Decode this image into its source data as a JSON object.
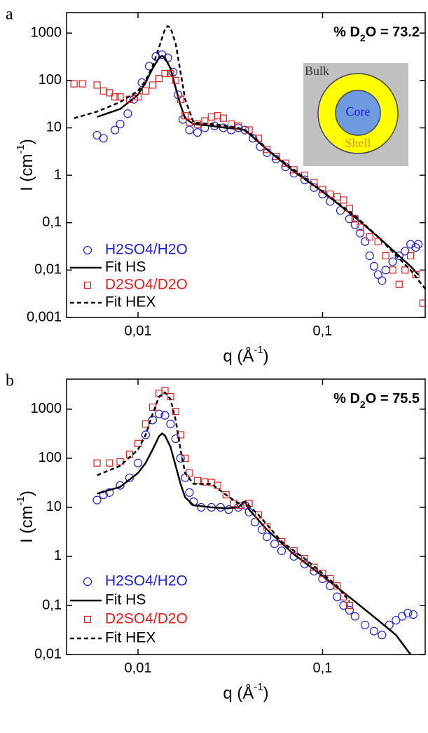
{
  "chart_data": [
    {
      "type": "scatter",
      "panel_label": "a",
      "annotation": [
        "% D",
        "2",
        "O = 73.2"
      ],
      "x_label": [
        "q (Å",
        "-1",
        ")"
      ],
      "y_label": [
        "I (cm",
        "-1",
        ")"
      ],
      "x_scale": "log",
      "y_scale": "log",
      "grid": false,
      "legend": "lower left",
      "xlim": [
        0.0041,
        0.36
      ],
      "ylim": [
        0.001,
        2700
      ],
      "xticks": [
        {
          "value": 0.01,
          "label": "0,01"
        },
        {
          "value": 0.1,
          "label": "0,1"
        }
      ],
      "yticks": [
        {
          "value": 0.001,
          "label": "0,001"
        },
        {
          "value": 0.01,
          "label": "0,01"
        },
        {
          "value": 0.1,
          "label": "0,1"
        },
        1,
        10,
        100,
        1000
      ],
      "inset": [
        "Bulk",
        "Core",
        "Shell"
      ],
      "series": [
        {
          "name": "H2SO4/H2O",
          "color": "#1f1fd0",
          "style": "circle",
          "x": [
            0.006,
            0.0065,
            0.0075,
            0.008,
            0.0088,
            0.0095,
            0.0105,
            0.0115,
            0.0125,
            0.0135,
            0.0145,
            0.0155,
            0.0165,
            0.0175,
            0.019,
            0.021,
            0.023,
            0.026,
            0.029,
            0.032,
            0.035,
            0.038,
            0.042,
            0.046,
            0.05,
            0.056,
            0.063,
            0.07,
            0.08,
            0.09,
            0.1,
            0.11,
            0.125,
            0.14,
            0.15,
            0.16,
            0.17,
            0.18,
            0.19,
            0.2,
            0.21,
            0.22,
            0.24,
            0.26,
            0.28,
            0.3,
            0.32,
            0.33
          ],
          "values": [
            7,
            6,
            9,
            12,
            20,
            40,
            90,
            200,
            320,
            350,
            300,
            150,
            50,
            15,
            9,
            8,
            10,
            11,
            10,
            9,
            10,
            9,
            6,
            4,
            3,
            2.2,
            1.5,
            1.1,
            0.8,
            0.55,
            0.4,
            0.28,
            0.18,
            0.12,
            0.09,
            0.06,
            0.04,
            0.02,
            0.012,
            0.008,
            0.006,
            0.01,
            0.015,
            0.02,
            0.025,
            0.035,
            0.03,
            0.035
          ]
        },
        {
          "name": "Fit HS",
          "color": "#000000",
          "style": "solid",
          "x": [
            0.006,
            0.008,
            0.01,
            0.011,
            0.012,
            0.013,
            0.0135,
            0.014,
            0.015,
            0.016,
            0.017,
            0.018,
            0.02,
            0.025,
            0.03,
            0.035,
            0.038,
            0.045,
            0.05,
            0.07,
            0.1,
            0.15,
            0.2,
            0.3,
            0.33
          ],
          "values": [
            17,
            25,
            50,
            90,
            180,
            300,
            330,
            300,
            180,
            70,
            30,
            16,
            12,
            11,
            10,
            9.5,
            9,
            5,
            3.5,
            1.2,
            0.45,
            0.13,
            0.05,
            0.012,
            0.008
          ]
        },
        {
          "name": "D2SO4/D2O",
          "color": "#e02020",
          "style": "square",
          "x": [
            0.0045,
            0.005,
            0.006,
            0.0065,
            0.007,
            0.0075,
            0.008,
            0.009,
            0.01,
            0.011,
            0.012,
            0.013,
            0.014,
            0.015,
            0.016,
            0.017,
            0.018,
            0.019,
            0.021,
            0.023,
            0.025,
            0.027,
            0.029,
            0.032,
            0.035,
            0.04,
            0.045,
            0.05,
            0.056,
            0.063,
            0.07,
            0.08,
            0.09,
            0.1,
            0.11,
            0.12,
            0.13,
            0.14,
            0.15,
            0.16,
            0.18,
            0.2,
            0.22,
            0.24,
            0.26,
            0.28,
            0.3,
            0.32,
            0.35
          ],
          "values": [
            85,
            85,
            80,
            60,
            55,
            45,
            45,
            40,
            45,
            60,
            80,
            110,
            140,
            140,
            100,
            40,
            18,
            13,
            12,
            14,
            17,
            18,
            16,
            12,
            11,
            9,
            6,
            3.5,
            2.5,
            1.8,
            1.3,
            1,
            0.7,
            0.5,
            0.4,
            0.35,
            0.3,
            0.2,
            0.12,
            0.08,
            0.05,
            0.04,
            0.02,
            0.01,
            0.005,
            0.01,
            0.02,
            0.008,
            0.002
          ]
        },
        {
          "name": "Fit HEX",
          "color": "#000000",
          "style": "dashed",
          "x": [
            0.0045,
            0.006,
            0.008,
            0.01,
            0.011,
            0.012,
            0.013,
            0.014,
            0.0145,
            0.015,
            0.016,
            0.017,
            0.018,
            0.02,
            0.025,
            0.03,
            0.035,
            0.04,
            0.05,
            0.07,
            0.1,
            0.15,
            0.2,
            0.3,
            0.36
          ],
          "values": [
            16,
            22,
            35,
            60,
            100,
            200,
            500,
            1200,
            1400,
            1300,
            600,
            150,
            40,
            13,
            12,
            11,
            10,
            8,
            3.5,
            1.3,
            0.45,
            0.14,
            0.05,
            0.01,
            0.004
          ]
        }
      ]
    },
    {
      "type": "scatter",
      "panel_label": "b",
      "annotation": [
        "% D",
        "2",
        "O = 75.5"
      ],
      "x_label": [
        "q (Å",
        "-1",
        ")"
      ],
      "y_label": [
        "I (cm",
        "-1",
        ")"
      ],
      "x_scale": "log",
      "y_scale": "log",
      "grid": false,
      "legend": "lower left",
      "xlim": [
        0.0041,
        0.36
      ],
      "ylim": [
        0.01,
        4100
      ],
      "xticks": [
        {
          "value": 0.01,
          "label": "0,01"
        },
        {
          "value": 0.1,
          "label": "0,1"
        }
      ],
      "yticks": [
        {
          "value": 0.01,
          "label": "0,01"
        },
        {
          "value": 0.1,
          "label": "0,1"
        },
        1,
        10,
        100,
        1000
      ],
      "series": [
        {
          "name": "H2SO4/H2O",
          "color": "#1f1fd0",
          "style": "circle",
          "x": [
            0.006,
            0.0065,
            0.007,
            0.008,
            0.009,
            0.01,
            0.011,
            0.012,
            0.013,
            0.014,
            0.015,
            0.016,
            0.017,
            0.018,
            0.019,
            0.02,
            0.022,
            0.025,
            0.028,
            0.031,
            0.035,
            0.038,
            0.04,
            0.043,
            0.047,
            0.05,
            0.055,
            0.06,
            0.07,
            0.08,
            0.09,
            0.1,
            0.11,
            0.12,
            0.13,
            0.14,
            0.15,
            0.17,
            0.19,
            0.21,
            0.23,
            0.25,
            0.27,
            0.29,
            0.31
          ],
          "values": [
            14,
            18,
            20,
            28,
            40,
            80,
            300,
            600,
            800,
            750,
            500,
            250,
            100,
            40,
            20,
            13,
            10,
            10,
            10,
            9,
            10,
            11,
            8,
            5,
            3.5,
            2.5,
            1.8,
            1.3,
            1,
            0.7,
            0.5,
            0.35,
            0.25,
            0.15,
            0.1,
            0.08,
            0.06,
            0.04,
            0.03,
            0.025,
            0.04,
            0.05,
            0.06,
            0.07,
            0.065
          ]
        },
        {
          "name": "Fit HS",
          "color": "#000000",
          "style": "solid",
          "x": [
            0.006,
            0.008,
            0.01,
            0.011,
            0.012,
            0.013,
            0.0135,
            0.014,
            0.015,
            0.016,
            0.017,
            0.018,
            0.02,
            0.025,
            0.03,
            0.035,
            0.038,
            0.04,
            0.05,
            0.07,
            0.1,
            0.15,
            0.2,
            0.25,
            0.3
          ],
          "values": [
            19,
            26,
            50,
            80,
            150,
            280,
            320,
            290,
            170,
            70,
            30,
            16,
            11,
            10,
            9.5,
            10,
            13,
            9,
            3.5,
            1.1,
            0.4,
            0.12,
            0.05,
            0.025,
            0.01
          ]
        },
        {
          "name": "D2SO4/D2O",
          "color": "#e02020",
          "style": "square",
          "x": [
            0.006,
            0.007,
            0.008,
            0.009,
            0.01,
            0.011,
            0.012,
            0.013,
            0.014,
            0.015,
            0.016,
            0.017,
            0.018,
            0.019,
            0.021,
            0.023,
            0.025,
            0.027,
            0.03,
            0.033,
            0.036,
            0.04,
            0.045,
            0.05,
            0.06,
            0.07,
            0.08,
            0.09,
            0.1,
            0.11,
            0.12,
            0.13,
            0.14
          ],
          "values": [
            80,
            80,
            85,
            120,
            200,
            500,
            1100,
            2100,
            2400,
            1800,
            900,
            300,
            100,
            50,
            35,
            33,
            32,
            28,
            18,
            12,
            11,
            12,
            7,
            4,
            2,
            1.3,
            0.9,
            0.6,
            0.45,
            0.35,
            0.25,
            0.15,
            0.1
          ]
        },
        {
          "name": "Fit HEX",
          "color": "#000000",
          "style": "dashed",
          "x": [
            0.006,
            0.008,
            0.01,
            0.011,
            0.012,
            0.013,
            0.014,
            0.015,
            0.016,
            0.017,
            0.018,
            0.02,
            0.025,
            0.03,
            0.035,
            0.038,
            0.045,
            0.06,
            0.08,
            0.1,
            0.12,
            0.14
          ],
          "values": [
            45,
            70,
            150,
            300,
            800,
            1800,
            2200,
            1600,
            600,
            150,
            50,
            30,
            30,
            18,
            12,
            13,
            7,
            2,
            0.9,
            0.45,
            0.25,
            0.12
          ]
        }
      ]
    }
  ]
}
